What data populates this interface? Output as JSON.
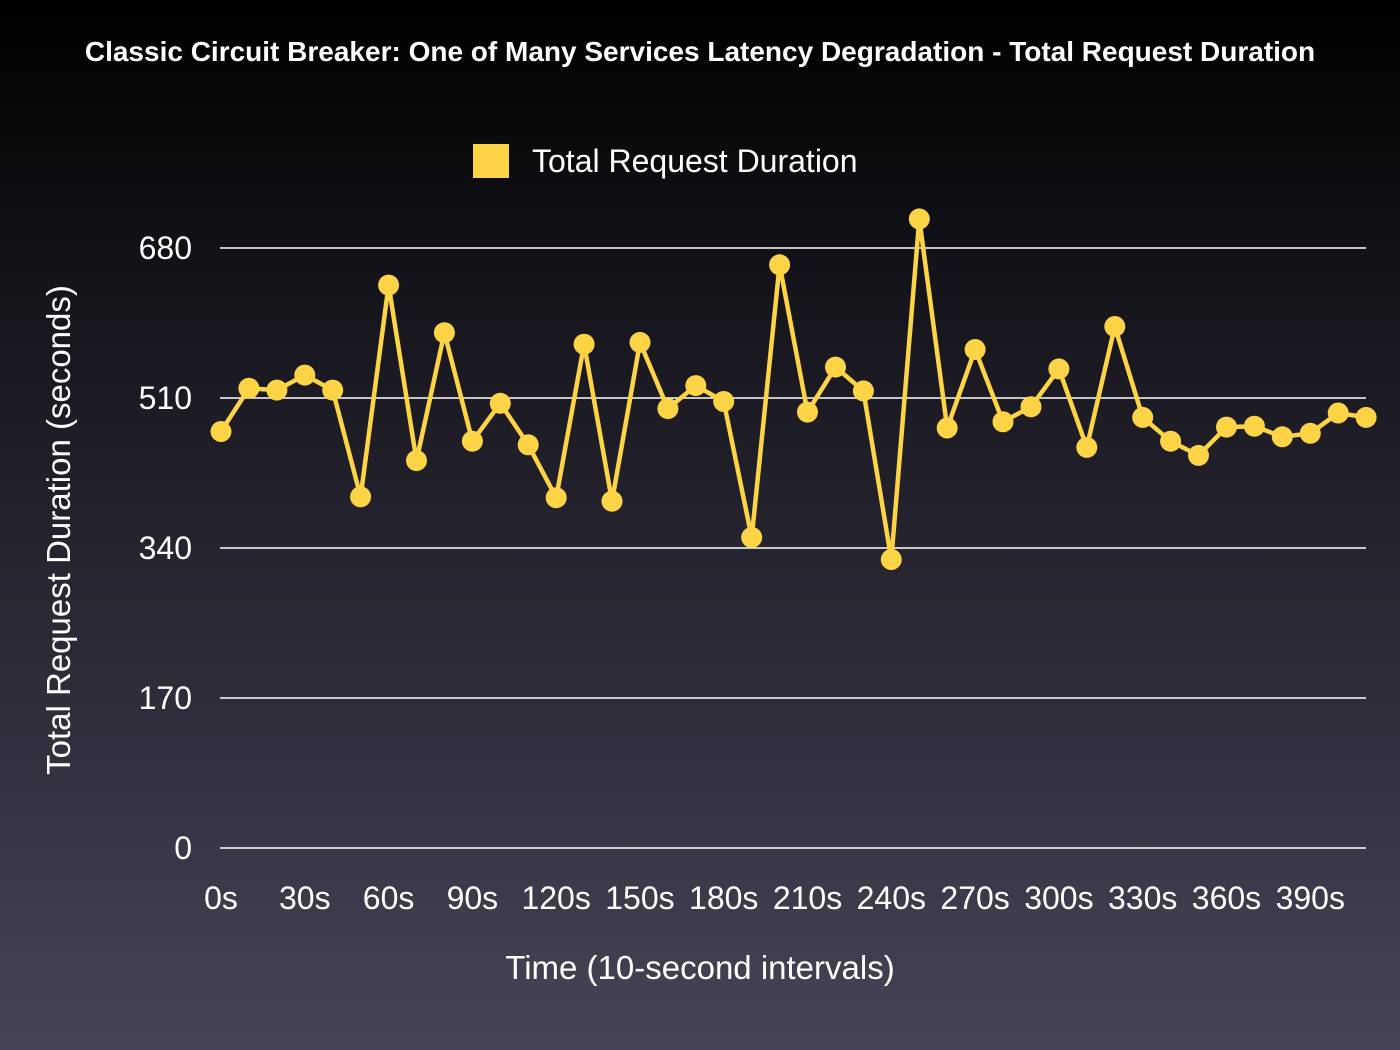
{
  "chart_data": {
    "type": "line",
    "title": "Classic Circuit Breaker: One of Many Services Latency Degradation - Total Request Duration",
    "xlabel": "Time (10-second intervals)",
    "ylabel": "Total Request Duration (seconds)",
    "ylim": [
      0,
      680
    ],
    "yticks": [
      0,
      170,
      340,
      510,
      680
    ],
    "xtick_labels": [
      "0s",
      "30s",
      "60s",
      "90s",
      "120s",
      "150s",
      "180s",
      "210s",
      "240s",
      "270s",
      "300s",
      "330s",
      "360s",
      "390s"
    ],
    "x": [
      0,
      10,
      20,
      30,
      40,
      50,
      60,
      70,
      80,
      90,
      100,
      110,
      120,
      130,
      140,
      150,
      160,
      170,
      180,
      190,
      200,
      210,
      220,
      230,
      240,
      250,
      260,
      270,
      280,
      290,
      300,
      310,
      320,
      330,
      340,
      350,
      360,
      370,
      380,
      390,
      400,
      410
    ],
    "grid": true,
    "legend": "top-center",
    "series": [
      {
        "name": "Total Request Duration",
        "color": "#fdd445",
        "values": [
          472,
          521,
          519,
          536,
          519,
          398,
          638,
          439,
          584,
          461,
          504,
          457,
          397,
          571,
          393,
          573,
          498,
          524,
          506,
          352,
          661,
          494,
          545,
          518,
          327,
          713,
          476,
          565,
          483,
          500,
          543,
          454,
          591,
          488,
          461,
          445,
          477,
          478,
          466,
          470,
          493,
          488
        ]
      }
    ]
  }
}
